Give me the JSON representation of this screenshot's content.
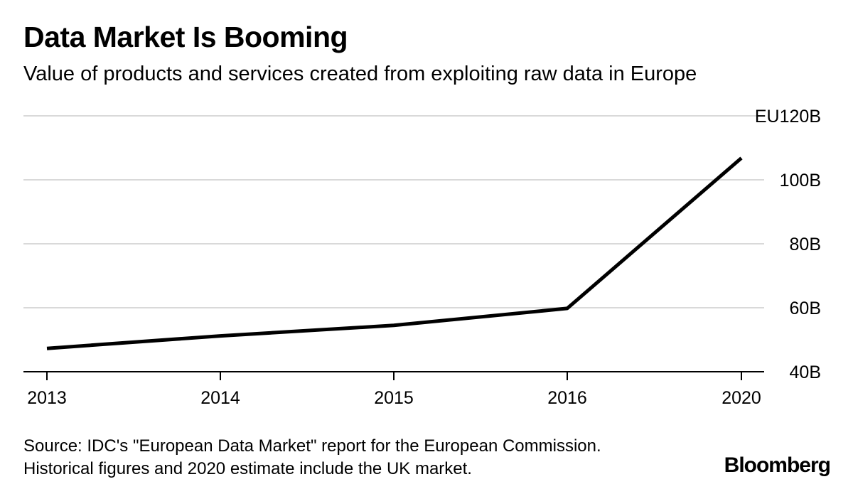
{
  "header": {
    "title": "Data Market Is Booming",
    "subtitle": "Value of products and services created from exploiting raw data in Europe"
  },
  "footer": {
    "source_line1": "Source: IDC's \"European Data Market\" report for the European Commission.",
    "source_line2": "Historical figures and 2020 estimate include the UK market.",
    "logo": "Bloomberg"
  },
  "chart_data": {
    "type": "line",
    "title": "Data Market Is Booming",
    "subtitle": "Value of products and services created from exploiting raw data in Europe",
    "xlabel": "",
    "ylabel": "",
    "categories": [
      "2013",
      "2014",
      "2015",
      "2016",
      "2020"
    ],
    "series": [
      {
        "values": [
          47.3,
          51.2,
          54.5,
          59.8,
          106.8
        ]
      }
    ],
    "ylim": [
      40,
      120
    ],
    "yticks": [
      40,
      60,
      80,
      100,
      120
    ],
    "ytick_labels": [
      "40B",
      "60B",
      "80B",
      "100B",
      "EU120B"
    ],
    "y_axis_position": "right",
    "grid": true,
    "legend": "none",
    "colors": {
      "line": "#000000",
      "grid": "#d9d9d9",
      "axis": "#000000"
    }
  }
}
